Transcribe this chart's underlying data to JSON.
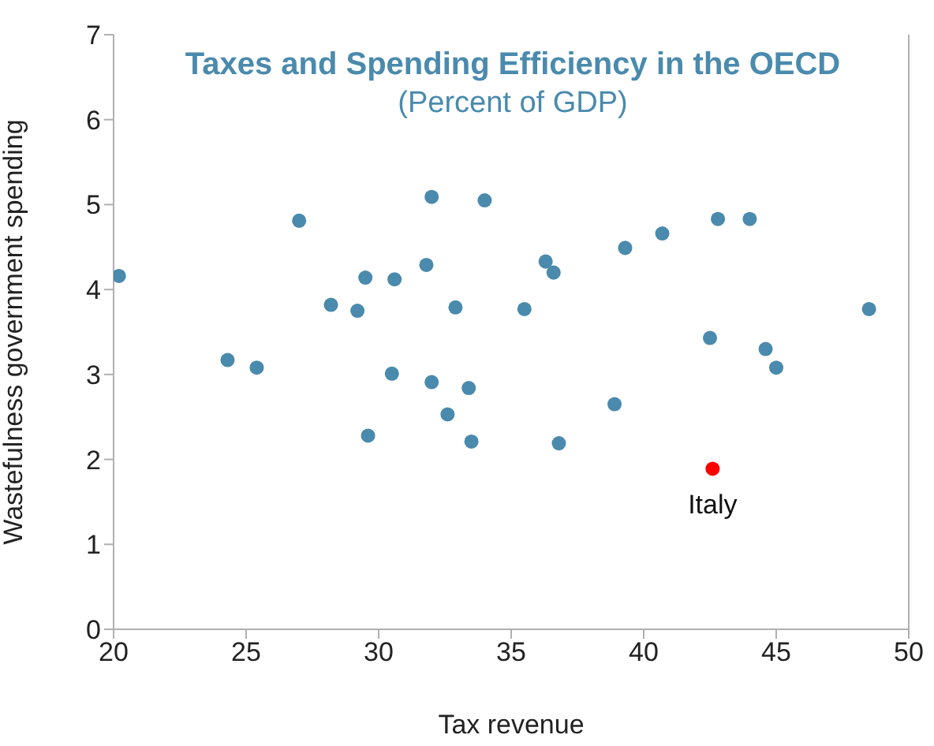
{
  "chart_data": {
    "type": "scatter",
    "title": "Taxes and Spending Efficiency in the OECD",
    "subtitle": "(Percent of GDP)",
    "xlabel": "Tax revenue",
    "ylabel": "Wastefulness government spending",
    "series": [
      {
        "color": "#4a8aad",
        "x": [
          20.2,
          24.3,
          25.4,
          27.0,
          28.2,
          29.2,
          29.5,
          29.6,
          30.6,
          30.5,
          31.8,
          32.0,
          32.0,
          32.6,
          32.9,
          33.4,
          33.5,
          34.0,
          35.5,
          36.3,
          36.6,
          36.8,
          38.9,
          39.3,
          40.7,
          42.5,
          42.8,
          44.0,
          44.6,
          45.0,
          48.5
        ],
        "values": [
          4.16,
          3.17,
          3.08,
          4.81,
          3.82,
          3.75,
          4.14,
          2.28,
          4.12,
          3.01,
          4.29,
          5.09,
          2.91,
          2.53,
          3.79,
          2.84,
          2.21,
          5.05,
          3.77,
          4.33,
          4.2,
          2.19,
          2.65,
          4.49,
          4.66,
          3.43,
          4.83,
          4.83,
          3.3,
          3.08,
          3.77
        ]
      },
      {
        "color": "#ff0000",
        "x": [
          42.6
        ],
        "values": [
          1.89
        ]
      }
    ],
    "annotations": [
      {
        "text": "Italy",
        "x": 42.6,
        "y": 1.89
      }
    ],
    "xlim": [
      20,
      50
    ],
    "xticks": [
      20,
      25,
      30,
      35,
      40,
      45,
      50
    ],
    "ylim": [
      0,
      7
    ],
    "yticks": [
      0,
      1,
      2,
      3,
      4,
      5,
      6,
      7
    ],
    "grid": false,
    "marker": "circle"
  }
}
